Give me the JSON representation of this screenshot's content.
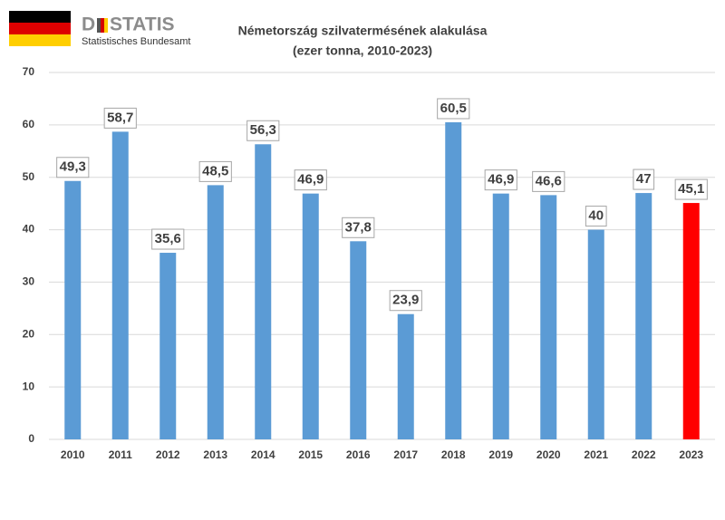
{
  "logo": {
    "name_start": "D",
    "name_end": "STATIS",
    "subtitle": "Statistisches Bundesamt"
  },
  "chart_data": {
    "type": "bar",
    "title": "Németország szilvatermésének alakulása",
    "subtitle": "(ezer tonna, 2010-2023)",
    "categories": [
      "2010",
      "2011",
      "2012",
      "2013",
      "2014",
      "2015",
      "2016",
      "2017",
      "2018",
      "2019",
      "2020",
      "2021",
      "2022",
      "2023"
    ],
    "values": [
      49.3,
      58.7,
      35.6,
      48.5,
      56.3,
      46.9,
      37.8,
      23.9,
      60.5,
      46.9,
      46.6,
      40,
      47,
      45.1
    ],
    "value_labels": [
      "49,3",
      "58,7",
      "35,6",
      "48,5",
      "56,3",
      "46,9",
      "37,8",
      "23,9",
      "60,5",
      "46,9",
      "46,6",
      "40",
      "47",
      "45,1"
    ],
    "colors": [
      "#5b9bd5",
      "#5b9bd5",
      "#5b9bd5",
      "#5b9bd5",
      "#5b9bd5",
      "#5b9bd5",
      "#5b9bd5",
      "#5b9bd5",
      "#5b9bd5",
      "#5b9bd5",
      "#5b9bd5",
      "#5b9bd5",
      "#5b9bd5",
      "#ff0000"
    ],
    "ylim": [
      0,
      70
    ],
    "yticks": [
      0,
      10,
      20,
      30,
      40,
      50,
      60,
      70
    ],
    "grid": true
  }
}
